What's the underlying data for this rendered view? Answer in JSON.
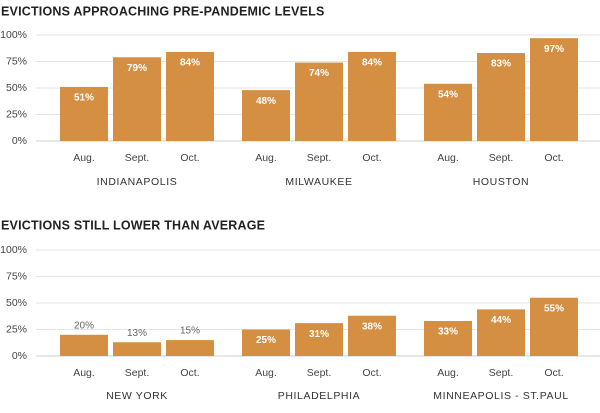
{
  "colors": {
    "bar": "#d58f42",
    "grid": "#e6e6e6",
    "axis_text": "#444444",
    "value_inside": "#ffffff",
    "value_outside": "#666666"
  },
  "chart_data": [
    {
      "type": "bar",
      "title": "EVICTIONS APPROACHING PRE-PANDEMIC LEVELS",
      "ylim": [
        0,
        100
      ],
      "y_ticks": [
        "0%",
        "25%",
        "50%",
        "75%",
        "100%"
      ],
      "y_tick_values": [
        0,
        25,
        50,
        75,
        100
      ],
      "categories": [
        "Aug.",
        "Sept.",
        "Oct."
      ],
      "grid": true,
      "series": [
        {
          "name": "INDIANAPOLIS",
          "values": [
            51,
            79,
            84
          ],
          "labels": [
            "51%",
            "79%",
            "84%"
          ]
        },
        {
          "name": "MILWAUKEE",
          "values": [
            48,
            74,
            84
          ],
          "labels": [
            "48%",
            "74%",
            "84%"
          ]
        },
        {
          "name": "HOUSTON",
          "values": [
            54,
            83,
            97
          ],
          "labels": [
            "54%",
            "83%",
            "97%"
          ]
        }
      ]
    },
    {
      "type": "bar",
      "title": "EVICTIONS STILL LOWER THAN AVERAGE",
      "ylim": [
        0,
        100
      ],
      "y_ticks": [
        "0%",
        "25%",
        "50%",
        "75%",
        "100%"
      ],
      "y_tick_values": [
        0,
        25,
        50,
        75,
        100
      ],
      "categories": [
        "Aug.",
        "Sept.",
        "Oct."
      ],
      "grid": true,
      "series": [
        {
          "name": "NEW YORK",
          "values": [
            20,
            13,
            15
          ],
          "labels": [
            "20%",
            "13%",
            "15%"
          ]
        },
        {
          "name": "PHILADELPHIA",
          "values": [
            25,
            31,
            38
          ],
          "labels": [
            "25%",
            "31%",
            "38%"
          ]
        },
        {
          "name": "MINNEAPOLIS - ST.PAUL",
          "values": [
            33,
            44,
            55
          ],
          "labels": [
            "33%",
            "44%",
            "55%"
          ]
        }
      ]
    }
  ]
}
